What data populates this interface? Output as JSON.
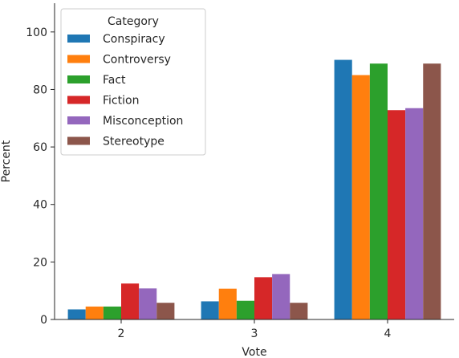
{
  "chart_data": {
    "type": "bar",
    "xlabel": "Vote",
    "ylabel": "Percent",
    "categories": [
      "2",
      "3",
      "4"
    ],
    "ylim": [
      0,
      110
    ],
    "yticks": [
      0,
      20,
      40,
      60,
      80,
      100
    ],
    "legend": {
      "title": "Category",
      "placement": "top-left"
    },
    "series": [
      {
        "name": "Conspiracy",
        "color": "#1f77b4",
        "values": [
          3.5,
          6.3,
          90.3
        ]
      },
      {
        "name": "Controversy",
        "color": "#ff7f0e",
        "values": [
          4.5,
          10.7,
          85.0
        ]
      },
      {
        "name": "Fact",
        "color": "#2ca02c",
        "values": [
          4.5,
          6.5,
          89.0
        ]
      },
      {
        "name": "Fiction",
        "color": "#d62728",
        "values": [
          12.5,
          14.7,
          72.8
        ]
      },
      {
        "name": "Misconception",
        "color": "#9467bd",
        "values": [
          10.8,
          15.8,
          73.5
        ]
      },
      {
        "name": "Stereotype",
        "color": "#8c564b",
        "values": [
          5.8,
          5.8,
          89.0
        ]
      }
    ],
    "grid": false
  }
}
